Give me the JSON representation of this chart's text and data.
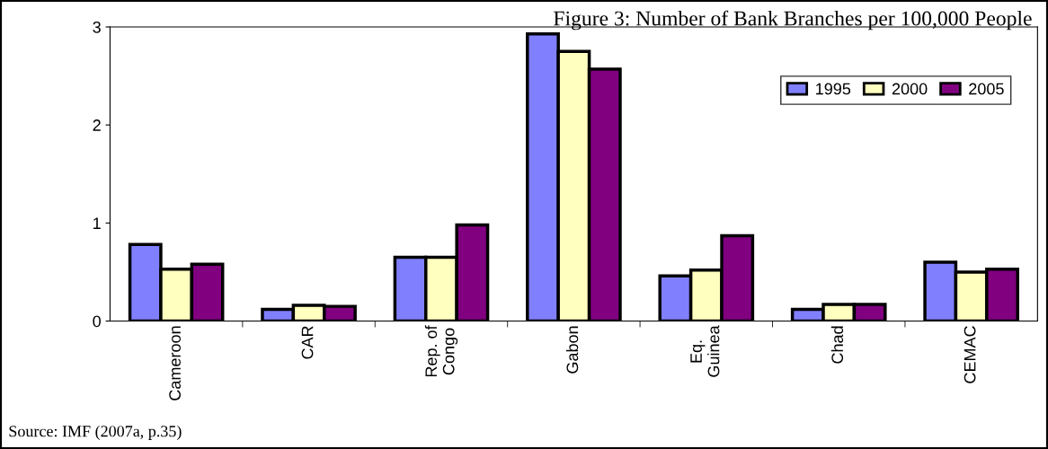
{
  "chart_data": {
    "type": "bar",
    "title": "Figure 3: Number of Bank Branches per 100,000 People",
    "categories": [
      "Cameroon",
      "CAR",
      "Rep. of\nCongo",
      "Gabon",
      "Eq.\nGuinea",
      "Chad",
      "CEMAC"
    ],
    "series": [
      {
        "name": "1995",
        "color": "#8080ff",
        "values": [
          0.78,
          0.12,
          0.65,
          2.93,
          0.46,
          0.12,
          0.6
        ]
      },
      {
        "name": "2000",
        "color": "#ffffc0",
        "values": [
          0.53,
          0.16,
          0.65,
          2.75,
          0.52,
          0.17,
          0.5
        ]
      },
      {
        "name": "2005",
        "color": "#800080",
        "values": [
          0.58,
          0.15,
          0.98,
          2.57,
          0.87,
          0.17,
          0.53
        ]
      }
    ],
    "ylim": [
      0,
      3
    ],
    "yticks": [
      0,
      1,
      2,
      3
    ],
    "grid": false,
    "legend": "top right",
    "annotations": [
      "Source: IMF (2007a, p.35)"
    ]
  }
}
